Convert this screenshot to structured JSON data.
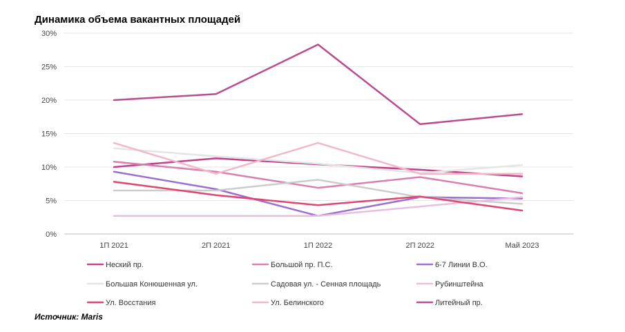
{
  "title": "Динамика объема вакантных площадей",
  "source": "Источник: Maris",
  "chart_data": {
    "type": "line",
    "title": "Динамика объема вакантных площадей",
    "xlabel": "",
    "ylabel": "",
    "ylim": [
      0,
      30
    ],
    "yticks": [
      "0%",
      "5%",
      "10%",
      "15%",
      "20%",
      "25%",
      "30%"
    ],
    "categories": [
      "1П 2021",
      "2П 2021",
      "1П 2022",
      "2П 2022",
      "Май 2023"
    ],
    "grid": true,
    "legend_position": "bottom",
    "series": [
      {
        "name": "Неский пр.",
        "color": "#c2408a",
        "values": [
          10.0,
          11.3,
          10.4,
          9.6,
          8.6
        ]
      },
      {
        "name": "Большой пр. П.С.",
        "color": "#d97fb0",
        "values": [
          10.8,
          9.3,
          6.9,
          8.5,
          6.1
        ]
      },
      {
        "name": "6-7 Линии В.О.",
        "color": "#9b6fcf",
        "values": [
          9.3,
          6.7,
          2.7,
          5.5,
          5.3
        ]
      },
      {
        "name": "Большая Конюшенная ул.",
        "color": "#e4e4e4",
        "values": [
          12.8,
          11.6,
          10.5,
          9.1,
          10.3
        ]
      },
      {
        "name": "Садовая ул. - Сенная площадь",
        "color": "#cccccc",
        "values": [
          6.5,
          6.5,
          8.1,
          5.5,
          4.5
        ]
      },
      {
        "name": "Рубинштейна",
        "color": "#e8bde0",
        "values": [
          2.7,
          2.7,
          2.7,
          4.1,
          5.5
        ]
      },
      {
        "name": "Ул. Восстания",
        "color": "#e0456e",
        "values": [
          7.8,
          5.8,
          4.3,
          5.6,
          3.5
        ]
      },
      {
        "name": "Ул. Белинского",
        "color": "#f2b8c8",
        "values": [
          13.6,
          9.0,
          13.6,
          9.0,
          9.0
        ]
      },
      {
        "name": "Литейный пр.",
        "color": "#b94c8f",
        "values": [
          20.0,
          20.9,
          28.3,
          16.4,
          17.9
        ]
      }
    ]
  }
}
